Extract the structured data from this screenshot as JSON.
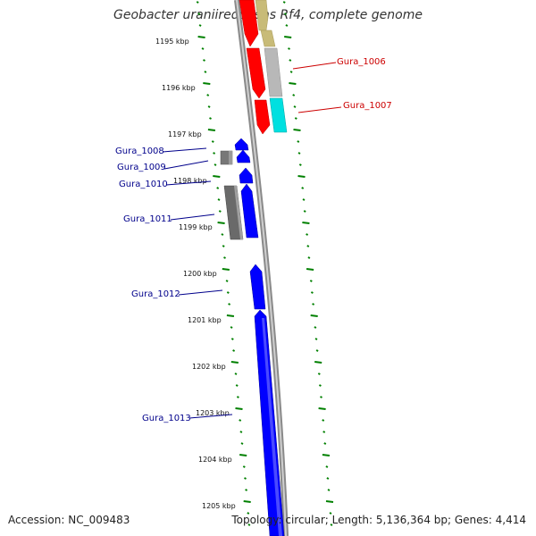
{
  "title": "Geobacter uraniireducens Rf4, complete genome",
  "footer": {
    "accession": "Accession: NC_009483",
    "topology": "Topology: circular; Length: 5,136,364 bp; Genes: 4,414"
  },
  "colors": {
    "blue_gene": "#0000ff",
    "red_gene": "#ff0000",
    "gray_gene": "#777777",
    "lightgray_gene": "#b8b8b8",
    "olive_gene": "#c8bb78",
    "cyan_gene": "#00e0e0",
    "tick_green": "#008000",
    "backbone": "#8a8a8a",
    "label_blue": "#00008b",
    "label_red": "#cc0000"
  },
  "ticks": [
    "1195 kbp",
    "1196 kbp",
    "1197 kbp",
    "1198 kbp",
    "1199 kbp",
    "1200 kbp",
    "1201 kbp",
    "1202 kbp",
    "1203 kbp",
    "1204 kbp",
    "1205 kbp"
  ],
  "genes": [
    {
      "label": "Gura_1006",
      "color": "red"
    },
    {
      "label": "Gura_1007",
      "color": "red"
    },
    {
      "label": "Gura_1008",
      "color": "blue"
    },
    {
      "label": "Gura_1009",
      "color": "blue"
    },
    {
      "label": "Gura_1010",
      "color": "blue"
    },
    {
      "label": "Gura_1011",
      "color": "blue"
    },
    {
      "label": "Gura_1012",
      "color": "blue"
    },
    {
      "label": "Gura_1013",
      "color": "blue"
    }
  ]
}
